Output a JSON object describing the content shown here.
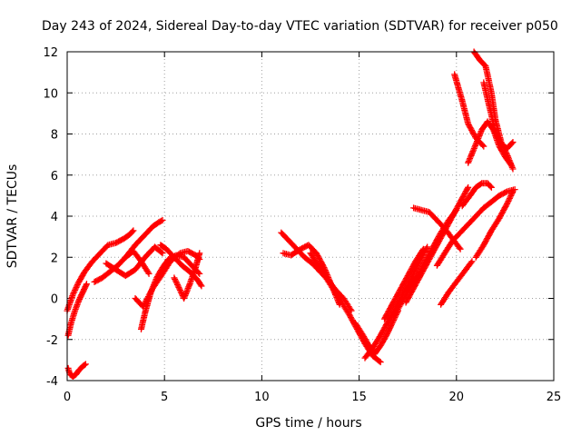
{
  "chart_data": {
    "type": "scatter",
    "title": "Day 243 of 2024, Sidereal Day-to-day VTEC variation (SDTVAR) for receiver p050",
    "xlabel": "GPS time / hours",
    "ylabel": "SDTVAR / TECUs",
    "xlim": [
      0,
      25
    ],
    "ylim": [
      -4,
      12
    ],
    "xticks": [
      "0",
      "5",
      "10",
      "15",
      "20",
      "25"
    ],
    "yticks": [
      "-4",
      "-2",
      "0",
      "2",
      "4",
      "6",
      "8",
      "10",
      "12"
    ],
    "grid": true,
    "marker": "plus",
    "color": "#ff0000",
    "series": [
      {
        "x": [
          0.0,
          0.3,
          0.6,
          0.9,
          1.3,
          1.7,
          2.1,
          2.5,
          2.9,
          3.2,
          3.4
        ],
        "y": [
          -0.6,
          0.2,
          0.8,
          1.3,
          1.8,
          2.2,
          2.6,
          2.7,
          2.9,
          3.1,
          3.3
        ]
      },
      {
        "x": [
          0.05,
          0.2,
          0.4,
          0.6,
          0.8,
          1.0
        ],
        "y": [
          -1.8,
          -1.2,
          -0.6,
          -0.1,
          0.3,
          0.7
        ]
      },
      {
        "x": [
          0.05,
          0.15,
          0.3,
          0.45,
          0.6,
          0.8,
          0.95
        ],
        "y": [
          -3.4,
          -3.7,
          -3.8,
          -3.7,
          -3.5,
          -3.3,
          -3.2
        ]
      },
      {
        "x": [
          1.4,
          1.8,
          2.2,
          2.6,
          3.0,
          3.4,
          3.8,
          4.2
        ],
        "y": [
          0.8,
          1.0,
          1.3,
          1.6,
          2.0,
          2.3,
          1.8,
          1.2
        ]
      },
      {
        "x": [
          2.0,
          2.5,
          3.0,
          3.5,
          4.0,
          4.5,
          4.9
        ],
        "y": [
          1.7,
          1.4,
          1.1,
          1.4,
          2.0,
          2.5,
          2.2
        ]
      },
      {
        "x": [
          3.0,
          3.5,
          4.0,
          4.4,
          4.7,
          4.9
        ],
        "y": [
          2.0,
          2.6,
          3.1,
          3.5,
          3.7,
          3.8
        ]
      },
      {
        "x": [
          3.8,
          4.0,
          4.3,
          4.6,
          4.9,
          5.2,
          5.6,
          6.0,
          6.4,
          6.8
        ],
        "y": [
          -1.5,
          -0.7,
          0.3,
          1.0,
          1.5,
          1.9,
          2.1,
          2.0,
          1.6,
          1.2
        ]
      },
      {
        "x": [
          3.5,
          3.9,
          4.4,
          4.9,
          5.3,
          5.8,
          6.2,
          6.6,
          6.8
        ],
        "y": [
          0.0,
          -0.4,
          0.5,
          1.2,
          1.8,
          2.2,
          2.3,
          2.1,
          1.9
        ]
      },
      {
        "x": [
          5.5,
          5.8,
          6.0,
          6.3,
          6.6,
          6.8
        ],
        "y": [
          1.0,
          0.4,
          0.0,
          0.7,
          1.5,
          2.2
        ]
      },
      {
        "x": [
          4.8,
          5.1,
          5.5,
          5.9,
          6.3,
          6.7,
          6.9
        ],
        "y": [
          2.6,
          2.4,
          2.0,
          1.6,
          1.3,
          0.9,
          0.6
        ]
      },
      {
        "x": [
          11.0,
          11.4,
          11.8,
          12.2,
          12.6,
          13.0,
          13.4,
          13.8,
          14.2,
          14.6
        ],
        "y": [
          3.2,
          2.8,
          2.4,
          2.0,
          1.7,
          1.3,
          0.9,
          0.4,
          0.0,
          -0.6
        ]
      },
      {
        "x": [
          11.1,
          11.5,
          12.0,
          12.4,
          12.8,
          13.2,
          13.6,
          14.0
        ],
        "y": [
          2.2,
          2.1,
          2.4,
          2.6,
          2.2,
          1.5,
          0.6,
          -0.3
        ]
      },
      {
        "x": [
          12.5,
          12.9,
          13.3,
          13.7,
          14.1,
          14.5,
          14.9,
          15.3,
          15.7,
          16.1
        ],
        "y": [
          2.2,
          1.6,
          1.0,
          0.4,
          -0.2,
          -0.8,
          -1.5,
          -2.2,
          -2.8,
          -3.1
        ]
      },
      {
        "x": [
          14.8,
          15.2,
          15.5,
          15.8,
          16.1,
          16.4,
          16.7,
          17.0
        ],
        "y": [
          -1.2,
          -1.8,
          -2.3,
          -2.7,
          -2.3,
          -1.8,
          -1.2,
          -0.6
        ]
      },
      {
        "x": [
          15.3,
          15.7,
          16.1,
          16.5,
          16.9,
          17.3,
          17.7,
          18.1,
          18.5
        ],
        "y": [
          -2.9,
          -2.4,
          -1.8,
          -1.1,
          -0.4,
          0.3,
          1.0,
          1.8,
          2.5
        ]
      },
      {
        "x": [
          16.3,
          16.7,
          17.1,
          17.5,
          17.9,
          18.3
        ],
        "y": [
          -1.0,
          -0.3,
          0.4,
          1.1,
          1.8,
          2.4
        ]
      },
      {
        "x": [
          16.8,
          17.2,
          17.6,
          18.0,
          18.4,
          18.8,
          19.2,
          19.6,
          20.0
        ],
        "y": [
          -0.8,
          -0.2,
          0.5,
          1.1,
          1.8,
          2.5,
          3.2,
          3.8,
          4.3
        ]
      },
      {
        "x": [
          17.4,
          17.8,
          18.2,
          18.6,
          19.0,
          19.4,
          19.8,
          20.2,
          20.6
        ],
        "y": [
          -0.2,
          0.5,
          1.2,
          1.9,
          2.6,
          3.3,
          4.0,
          4.7,
          5.4
        ]
      },
      {
        "x": [
          17.8,
          18.2,
          18.6,
          19.0,
          19.4,
          19.8,
          20.2
        ],
        "y": [
          4.4,
          4.3,
          4.2,
          3.8,
          3.4,
          2.9,
          2.4
        ]
      },
      {
        "x": [
          19.0,
          19.4,
          19.8,
          20.2,
          20.6,
          21.0,
          21.4,
          21.8,
          22.2,
          22.6,
          23.0
        ],
        "y": [
          1.6,
          2.2,
          2.8,
          3.2,
          3.6,
          4.0,
          4.4,
          4.7,
          5.0,
          5.2,
          5.3
        ]
      },
      {
        "x": [
          19.2,
          19.6,
          20.0,
          20.4,
          20.8
        ],
        "y": [
          -0.3,
          0.3,
          0.8,
          1.3,
          1.8
        ]
      },
      {
        "x": [
          19.9,
          20.3,
          20.6,
          21.0,
          21.4
        ],
        "y": [
          10.9,
          9.6,
          8.5,
          7.8,
          7.4
        ]
      },
      {
        "x": [
          20.3,
          20.7,
          21.0,
          21.3,
          21.6,
          21.8
        ],
        "y": [
          4.5,
          5.0,
          5.4,
          5.6,
          5.6,
          5.4
        ]
      },
      {
        "x": [
          20.9,
          21.2,
          21.5,
          21.8,
          22.0,
          22.3,
          22.6,
          22.9
        ],
        "y": [
          12.0,
          11.6,
          11.3,
          10.0,
          8.7,
          7.6,
          7.0,
          6.3
        ]
      },
      {
        "x": [
          20.6,
          21.0,
          21.3,
          21.6,
          21.9,
          22.2,
          22.5,
          22.8
        ],
        "y": [
          6.6,
          7.5,
          8.2,
          8.6,
          8.2,
          7.4,
          6.9,
          6.5
        ]
      },
      {
        "x": [
          21.4,
          21.7,
          22.0,
          22.3,
          22.6,
          22.9
        ],
        "y": [
          10.5,
          9.3,
          8.1,
          7.5,
          7.3,
          7.6
        ]
      },
      {
        "x": [
          21.0,
          21.4,
          21.8,
          22.2,
          22.6,
          22.9
        ],
        "y": [
          2.0,
          2.6,
          3.3,
          3.9,
          4.6,
          5.2
        ]
      }
    ]
  }
}
